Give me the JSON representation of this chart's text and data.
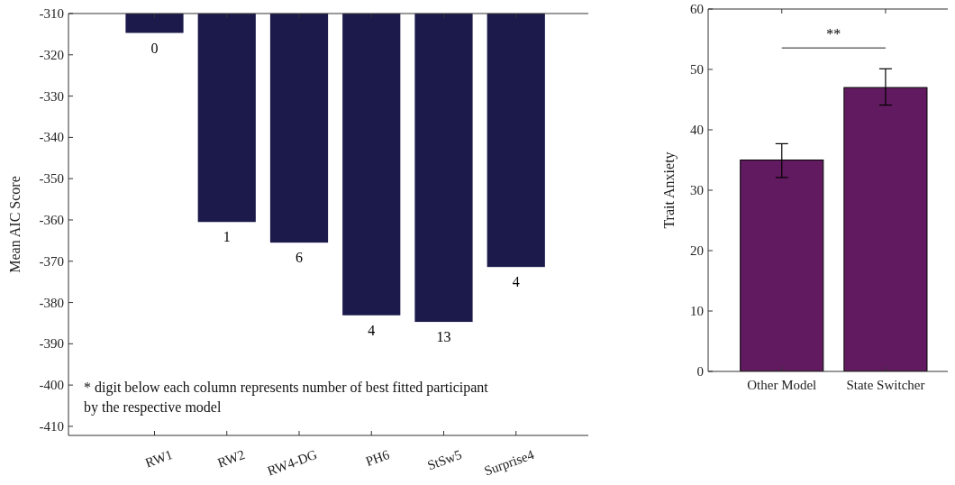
{
  "chart_data": [
    {
      "type": "bar",
      "categories": [
        "RW1",
        "RW2",
        "RW4-DG",
        "PH6",
        "StSw5",
        "Surprise4"
      ],
      "values": [
        -314.7,
        -360.5,
        -365.5,
        -383.1,
        -384.7,
        -371.4
      ],
      "color": "#1b1a4b",
      "ylabel": "Mean AIC Score",
      "ylim": [
        -412.2,
        -310
      ],
      "yticks": [
        -410,
        -400,
        -390,
        -380,
        -370,
        -360,
        -350,
        -340,
        -330,
        -320,
        -310
      ],
      "annotations": [
        "* digit below each column represents number of best fitted participant by the respective model",
        {
          "text": "0",
          "x": "RW1",
          "y": -314.7
        },
        {
          "text": "1",
          "x": "RW2",
          "y": -360.5
        },
        {
          "text": "6",
          "x": "RW4-DG",
          "y": -365.5
        },
        {
          "text": "4",
          "x": "PH6",
          "y": -383.1
        },
        {
          "text": "13",
          "x": "StSw5",
          "y": -384.7
        },
        {
          "text": "4",
          "x": "Surprise4",
          "y": -371.4
        }
      ]
    },
    {
      "type": "bar",
      "categories": [
        "Other Model",
        "State Switcher"
      ],
      "values": [
        35,
        47
      ],
      "color": "#611a5f",
      "errors": [
        [
          32.1,
          37.7
        ],
        [
          44.1,
          50.1
        ]
      ],
      "ylabel": "Trait Anxiety",
      "ylim": [
        0,
        60
      ],
      "yticks": [
        0,
        10,
        20,
        30,
        40,
        50,
        60
      ],
      "annotations": [
        "**"
      ]
    }
  ]
}
